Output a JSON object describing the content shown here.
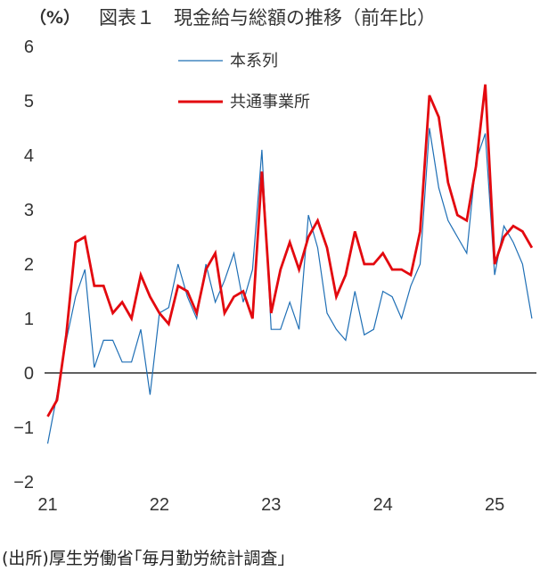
{
  "header": {
    "unit": "（%）",
    "title": "図表１　現金給与総額の推移（前年比）"
  },
  "source": "(出所)厚生労働省｢毎月勤労統計調査｣",
  "colors": {
    "series1": "#1f6fb5",
    "series2": "#e3090f",
    "zero_line": "#000000"
  },
  "chart_data": {
    "type": "line",
    "title": "現金給与総額の推移（前年比）",
    "ylabel": "（%）",
    "xlabel": "",
    "ylim": [
      -2,
      6
    ],
    "yticks": [
      "−2",
      "−1",
      "0",
      "1",
      "2",
      "3",
      "4",
      "5",
      "6"
    ],
    "xticks": [
      "21",
      "22",
      "23",
      "24",
      "25"
    ],
    "x_start": "2021-01",
    "grid": false,
    "legend_position": "top-center",
    "series": [
      {
        "name": "本系列",
        "values": [
          -1.3,
          -0.4,
          0.6,
          1.4,
          1.9,
          0.1,
          0.6,
          0.6,
          0.2,
          0.2,
          0.8,
          -0.4,
          1.1,
          1.2,
          2.0,
          1.4,
          1.0,
          2.0,
          1.3,
          1.7,
          2.2,
          1.3,
          1.9,
          4.1,
          0.8,
          0.8,
          1.3,
          0.8,
          2.9,
          2.3,
          1.1,
          0.8,
          0.6,
          1.5,
          0.7,
          0.8,
          1.5,
          1.4,
          1.0,
          1.6,
          2.0,
          4.5,
          3.4,
          2.8,
          2.5,
          2.2,
          3.9,
          4.4,
          1.8,
          2.7,
          2.4,
          2.0,
          1.0
        ]
      },
      {
        "name": "共通事業所",
        "values": [
          -0.8,
          -0.5,
          0.7,
          2.4,
          2.5,
          1.6,
          1.6,
          1.1,
          1.3,
          1.0,
          1.8,
          1.4,
          1.1,
          0.9,
          1.6,
          1.5,
          1.1,
          1.9,
          2.2,
          1.1,
          1.4,
          1.5,
          1.0,
          3.7,
          1.1,
          1.9,
          2.4,
          1.9,
          2.5,
          2.8,
          2.3,
          1.4,
          1.8,
          2.6,
          2.0,
          2.0,
          2.2,
          1.9,
          1.9,
          1.8,
          2.6,
          5.1,
          4.7,
          3.5,
          2.9,
          2.8,
          3.8,
          5.3,
          2.0,
          2.5,
          2.7,
          2.6,
          2.3
        ]
      }
    ]
  }
}
